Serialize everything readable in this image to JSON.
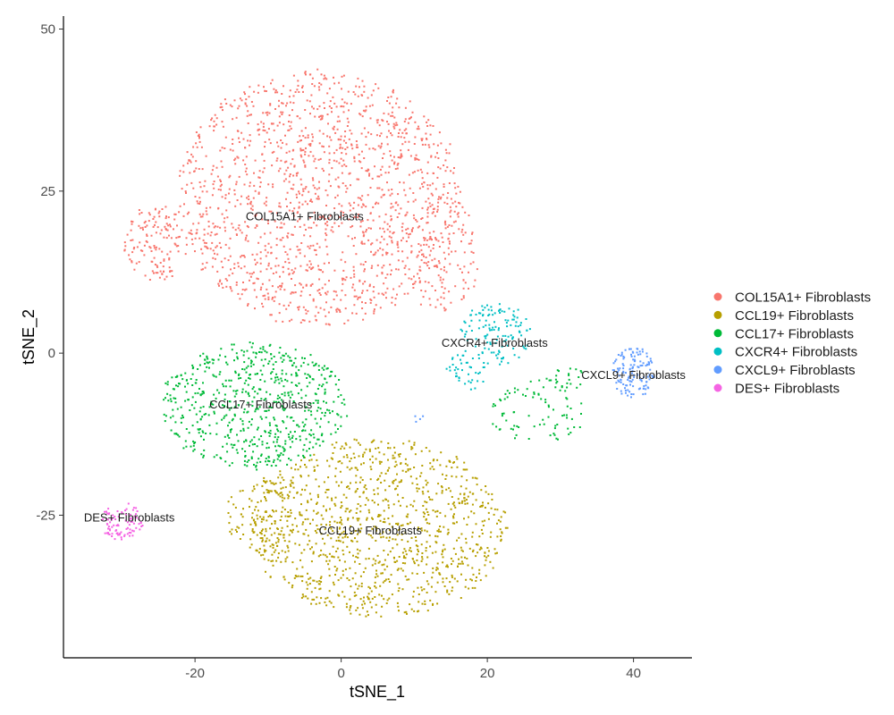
{
  "chart_data": {
    "type": "scatter",
    "xlabel": "tSNE_1",
    "ylabel": "tSNE_2",
    "xlim": [
      -38,
      48
    ],
    "ylim": [
      -47,
      52
    ],
    "xticks": [
      -20,
      0,
      20,
      40
    ],
    "yticks": [
      -25,
      0,
      25,
      50
    ],
    "grid": false,
    "legend_position": "right",
    "series": [
      {
        "name": "COL15A1+ Fibroblasts",
        "color": "#F8766D",
        "label": "COL15A1+ Fibroblasts",
        "label_pos": [
          -5,
          20.5
        ],
        "regions": [
          {
            "cx": -3,
            "cy": 24,
            "rx": 20,
            "ry": 20,
            "n": 1500
          },
          {
            "cx": -25,
            "cy": 17,
            "rx": 5,
            "ry": 6,
            "n": 140
          },
          {
            "cx": 14,
            "cy": 15,
            "rx": 5,
            "ry": 10,
            "n": 140
          }
        ]
      },
      {
        "name": "CCL19+ Fibroblasts",
        "color": "#B79F00",
        "label": "CCL19+ Fibroblasts",
        "label_pos": [
          4,
          -28
        ],
        "regions": [
          {
            "cx": 5,
            "cy": -27,
            "rx": 18,
            "ry": 14,
            "n": 1100
          },
          {
            "cx": -11,
            "cy": -25,
            "rx": 5,
            "ry": 6,
            "n": 90
          }
        ]
      },
      {
        "name": "CCL17+ Fibroblasts",
        "color": "#00BA38",
        "label": "CCL17+ Fibroblasts",
        "label_pos": [
          -11,
          -8.5
        ],
        "regions": [
          {
            "cx": -12,
            "cy": -8,
            "rx": 13,
            "ry": 10,
            "n": 650
          },
          {
            "cx": 27,
            "cy": -9,
            "rx": 7,
            "ry": 5,
            "n": 80
          },
          {
            "cx": 31,
            "cy": -4,
            "rx": 3,
            "ry": 2,
            "n": 25
          }
        ]
      },
      {
        "name": "CXCR4+ Fibroblasts",
        "color": "#00BFC4",
        "label": "CXCR4+ Fibroblasts",
        "label_pos": [
          21,
          1
        ],
        "regions": [
          {
            "cx": 21,
            "cy": 3,
            "rx": 5,
            "ry": 5,
            "n": 130
          },
          {
            "cx": 17,
            "cy": -3,
            "rx": 3,
            "ry": 3,
            "n": 40
          }
        ]
      },
      {
        "name": "CXCL9+ Fibroblasts",
        "color": "#619CFF",
        "label": "CXCL9+ Fibroblasts",
        "label_pos": [
          40,
          -4
        ],
        "regions": [
          {
            "cx": 40,
            "cy": -3,
            "rx": 3,
            "ry": 4,
            "n": 130
          },
          {
            "cx": 11,
            "cy": -10,
            "rx": 1,
            "ry": 1,
            "n": 4
          }
        ]
      },
      {
        "name": "DES+ Fibroblasts",
        "color": "#F564E3",
        "label": "DES+ Fibroblasts",
        "label_pos": [
          -29,
          -26
        ],
        "regions": [
          {
            "cx": -30,
            "cy": -26,
            "rx": 3,
            "ry": 3,
            "n": 90
          }
        ]
      }
    ]
  }
}
